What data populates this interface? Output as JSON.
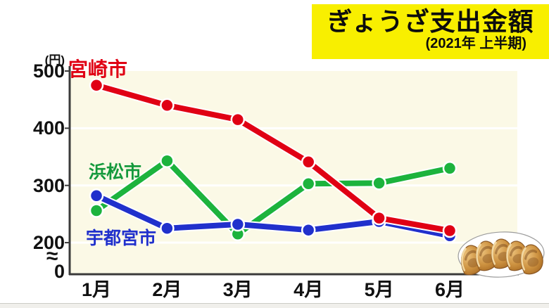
{
  "title_banner": {
    "title": "ぎょうざ支出金額",
    "subtitle": "(2021年 上半期)",
    "bg_color": "#f8ef00",
    "text_color": "#0d0d0d"
  },
  "chart_data": {
    "type": "line",
    "title": "ぎょうざ支出金額",
    "subtitle": "(2021年 上半期)",
    "unit_label": "(円)",
    "x_categories": [
      "1月",
      "2月",
      "3月",
      "4月",
      "5月",
      "6月"
    ],
    "y_ticks": [
      500,
      400,
      300,
      200
    ],
    "y_zero_label": "0",
    "axis_break_symbol": "≈",
    "ylim": [
      0,
      500
    ],
    "axis_break": true,
    "grid": true,
    "legend_position": "inline-labels",
    "colors": {
      "plot_bg": "#fbf9e6",
      "gridline": "#ffffff",
      "axis": "#3a3a3a"
    },
    "series": [
      {
        "name": "宮崎市",
        "color": "#e00014",
        "label_color": "#e00014",
        "values": [
          475,
          440,
          415,
          341,
          243,
          221
        ]
      },
      {
        "name": "浜松市",
        "color": "#1cb33d",
        "label_color": "#14993c",
        "values": [
          256,
          343,
          215,
          303,
          304,
          330
        ]
      },
      {
        "name": "宇都宮市",
        "color": "#2030cc",
        "label_color": "#2030cc",
        "values": [
          282,
          225,
          232,
          222,
          237,
          212
        ]
      }
    ]
  },
  "decor": {
    "gyoza_plate": "plate-with-five-gyoza-illustration"
  }
}
